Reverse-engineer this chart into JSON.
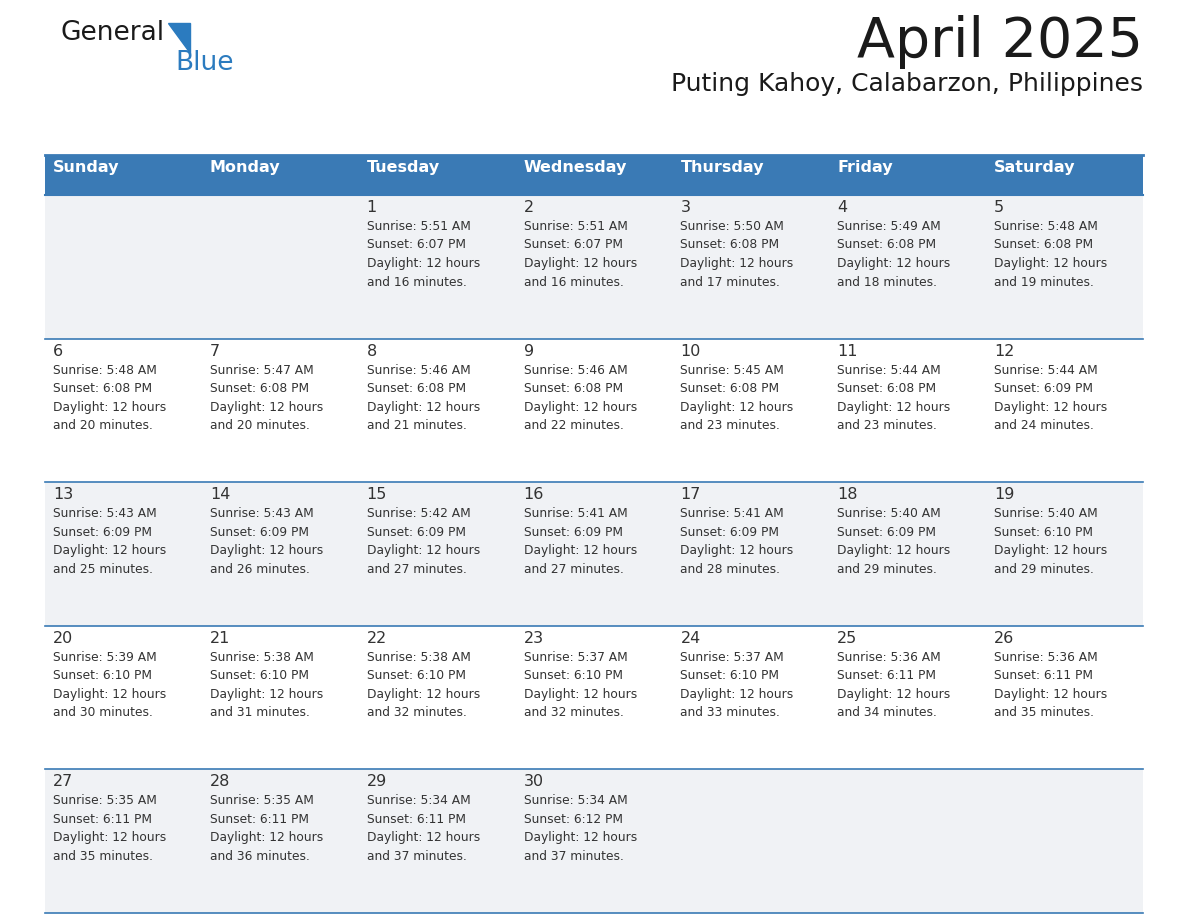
{
  "title": "April 2025",
  "subtitle": "Puting Kahoy, Calabarzon, Philippines",
  "header_bg_color": "#3a7ab5",
  "header_text_color": "#ffffff",
  "row_bg_even": "#f0f2f5",
  "row_bg_odd": "#ffffff",
  "border_color": "#3a7ab5",
  "text_color": "#333333",
  "logo_text_color": "#1a1a1a",
  "logo_blue_color": "#2b7bbf",
  "days_of_week": [
    "Sunday",
    "Monday",
    "Tuesday",
    "Wednesday",
    "Thursday",
    "Friday",
    "Saturday"
  ],
  "calendar_data": [
    [
      {
        "day": "",
        "info": ""
      },
      {
        "day": "",
        "info": ""
      },
      {
        "day": "1",
        "info": "Sunrise: 5:51 AM\nSunset: 6:07 PM\nDaylight: 12 hours\nand 16 minutes."
      },
      {
        "day": "2",
        "info": "Sunrise: 5:51 AM\nSunset: 6:07 PM\nDaylight: 12 hours\nand 16 minutes."
      },
      {
        "day": "3",
        "info": "Sunrise: 5:50 AM\nSunset: 6:08 PM\nDaylight: 12 hours\nand 17 minutes."
      },
      {
        "day": "4",
        "info": "Sunrise: 5:49 AM\nSunset: 6:08 PM\nDaylight: 12 hours\nand 18 minutes."
      },
      {
        "day": "5",
        "info": "Sunrise: 5:48 AM\nSunset: 6:08 PM\nDaylight: 12 hours\nand 19 minutes."
      }
    ],
    [
      {
        "day": "6",
        "info": "Sunrise: 5:48 AM\nSunset: 6:08 PM\nDaylight: 12 hours\nand 20 minutes."
      },
      {
        "day": "7",
        "info": "Sunrise: 5:47 AM\nSunset: 6:08 PM\nDaylight: 12 hours\nand 20 minutes."
      },
      {
        "day": "8",
        "info": "Sunrise: 5:46 AM\nSunset: 6:08 PM\nDaylight: 12 hours\nand 21 minutes."
      },
      {
        "day": "9",
        "info": "Sunrise: 5:46 AM\nSunset: 6:08 PM\nDaylight: 12 hours\nand 22 minutes."
      },
      {
        "day": "10",
        "info": "Sunrise: 5:45 AM\nSunset: 6:08 PM\nDaylight: 12 hours\nand 23 minutes."
      },
      {
        "day": "11",
        "info": "Sunrise: 5:44 AM\nSunset: 6:08 PM\nDaylight: 12 hours\nand 23 minutes."
      },
      {
        "day": "12",
        "info": "Sunrise: 5:44 AM\nSunset: 6:09 PM\nDaylight: 12 hours\nand 24 minutes."
      }
    ],
    [
      {
        "day": "13",
        "info": "Sunrise: 5:43 AM\nSunset: 6:09 PM\nDaylight: 12 hours\nand 25 minutes."
      },
      {
        "day": "14",
        "info": "Sunrise: 5:43 AM\nSunset: 6:09 PM\nDaylight: 12 hours\nand 26 minutes."
      },
      {
        "day": "15",
        "info": "Sunrise: 5:42 AM\nSunset: 6:09 PM\nDaylight: 12 hours\nand 27 minutes."
      },
      {
        "day": "16",
        "info": "Sunrise: 5:41 AM\nSunset: 6:09 PM\nDaylight: 12 hours\nand 27 minutes."
      },
      {
        "day": "17",
        "info": "Sunrise: 5:41 AM\nSunset: 6:09 PM\nDaylight: 12 hours\nand 28 minutes."
      },
      {
        "day": "18",
        "info": "Sunrise: 5:40 AM\nSunset: 6:09 PM\nDaylight: 12 hours\nand 29 minutes."
      },
      {
        "day": "19",
        "info": "Sunrise: 5:40 AM\nSunset: 6:10 PM\nDaylight: 12 hours\nand 29 minutes."
      }
    ],
    [
      {
        "day": "20",
        "info": "Sunrise: 5:39 AM\nSunset: 6:10 PM\nDaylight: 12 hours\nand 30 minutes."
      },
      {
        "day": "21",
        "info": "Sunrise: 5:38 AM\nSunset: 6:10 PM\nDaylight: 12 hours\nand 31 minutes."
      },
      {
        "day": "22",
        "info": "Sunrise: 5:38 AM\nSunset: 6:10 PM\nDaylight: 12 hours\nand 32 minutes."
      },
      {
        "day": "23",
        "info": "Sunrise: 5:37 AM\nSunset: 6:10 PM\nDaylight: 12 hours\nand 32 minutes."
      },
      {
        "day": "24",
        "info": "Sunrise: 5:37 AM\nSunset: 6:10 PM\nDaylight: 12 hours\nand 33 minutes."
      },
      {
        "day": "25",
        "info": "Sunrise: 5:36 AM\nSunset: 6:11 PM\nDaylight: 12 hours\nand 34 minutes."
      },
      {
        "day": "26",
        "info": "Sunrise: 5:36 AM\nSunset: 6:11 PM\nDaylight: 12 hours\nand 35 minutes."
      }
    ],
    [
      {
        "day": "27",
        "info": "Sunrise: 5:35 AM\nSunset: 6:11 PM\nDaylight: 12 hours\nand 35 minutes."
      },
      {
        "day": "28",
        "info": "Sunrise: 5:35 AM\nSunset: 6:11 PM\nDaylight: 12 hours\nand 36 minutes."
      },
      {
        "day": "29",
        "info": "Sunrise: 5:34 AM\nSunset: 6:11 PM\nDaylight: 12 hours\nand 37 minutes."
      },
      {
        "day": "30",
        "info": "Sunrise: 5:34 AM\nSunset: 6:12 PM\nDaylight: 12 hours\nand 37 minutes."
      },
      {
        "day": "",
        "info": ""
      },
      {
        "day": "",
        "info": ""
      },
      {
        "day": "",
        "info": ""
      }
    ]
  ]
}
